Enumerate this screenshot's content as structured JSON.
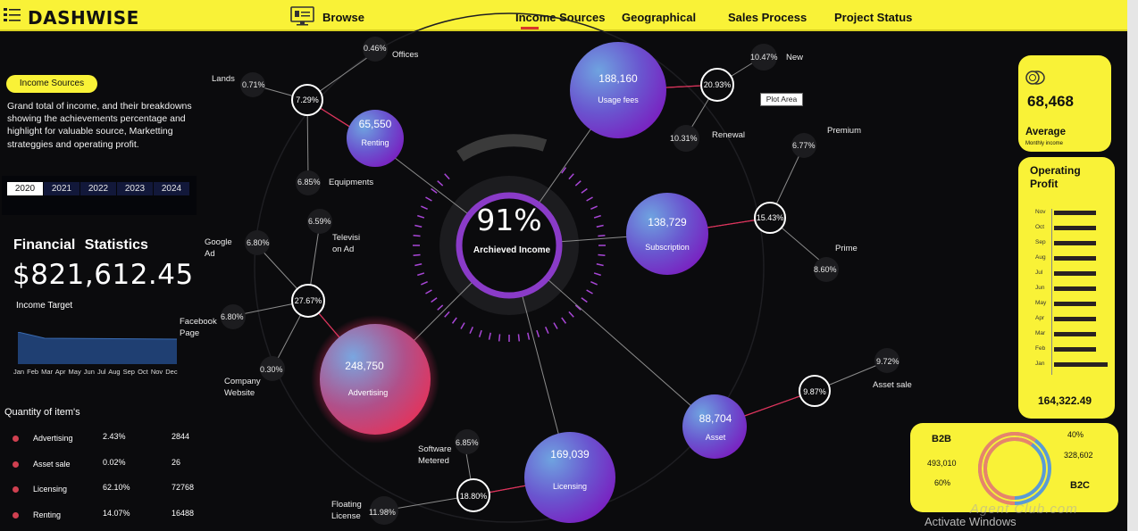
{
  "app": {
    "brand": "DASHWISE"
  },
  "nav": {
    "browse": "Browse",
    "items": [
      "Income Sources",
      "Geographical",
      "Sales Process",
      "Project Status"
    ],
    "active": "Income Sources"
  },
  "left": {
    "pill": "Income Sources",
    "description": "Grand total of income, and their breakdowns showing the achievements percentage and highlight for valuable source, Marketting strateggies and operating  profit.",
    "years": [
      "2020",
      "2021",
      "2022",
      "2023",
      "2024"
    ],
    "active_year": "2020",
    "financial_title": "Financial   Statistics",
    "financial_value": "$821,612.45",
    "income_target": "Income Target",
    "months": "Jan Feb Mar Apr May Jun  Jul  Aug Sep  Oct Nov Dec",
    "quantity_title": "Quantity  of item's",
    "quantity_rows": [
      {
        "name": "Advertising",
        "pct": "2.43%",
        "num": "2844"
      },
      {
        "name": "Asset sale",
        "pct": "0.02%",
        "num": "26"
      },
      {
        "name": "Licensing",
        "pct": "62.10%",
        "num": "72768"
      },
      {
        "name": "Renting",
        "pct": "14.07%",
        "num": "16488"
      }
    ]
  },
  "center": {
    "achieved_pct": "91%",
    "achieved_label": "Archieved Income",
    "bubbles": {
      "usage": {
        "value": "188,160",
        "label": "Usage fees"
      },
      "renting": {
        "value": "65,550",
        "label": "Renting"
      },
      "subscription": {
        "value": "138,729",
        "label": "Subscription"
      },
      "advertising": {
        "value": "248,750",
        "label": "Advertising"
      },
      "asset": {
        "value": "88,704",
        "label": "Asset"
      },
      "licensing": {
        "value": "169,039",
        "label": "Licensing"
      }
    },
    "nodes": {
      "renting": "7.29%",
      "usage": "20.93%",
      "subscription": "15.43%",
      "advertising": "27.67%",
      "asset": "9.87%",
      "licensing": "18.80%"
    },
    "leaves": {
      "offices": {
        "pct": "0.46%",
        "label": "Offices"
      },
      "lands": {
        "pct": "0.71%",
        "label": "Lands"
      },
      "equipments": {
        "pct": "6.85%",
        "label": "Equipments"
      },
      "new": {
        "pct": "10.47%",
        "label": "New"
      },
      "renewal": {
        "pct": "10.31%",
        "label": "Renewal"
      },
      "premium": {
        "pct": "6.77%",
        "label": "Premium"
      },
      "prime": {
        "pct": "8.60%",
        "label": "Prime"
      },
      "google": {
        "pct": "6.80%",
        "label1": "Google",
        "label2": "Ad"
      },
      "television": {
        "pct": "6.59%",
        "label1": "Televisi",
        "label2": "on Ad"
      },
      "facebook": {
        "pct": "6.80%",
        "label1": "Facebook",
        "label2": "Page"
      },
      "website": {
        "pct": "0.30%",
        "label1": "Company",
        "label2": "Website"
      },
      "assetsale1": {
        "pct": "9.72%"
      },
      "assetsale": {
        "label": "Asset sale"
      },
      "software": {
        "pct": "6.85%",
        "label1": "Software",
        "label2": "Metered"
      },
      "floating": {
        "pct": "11.98%",
        "label1": "Floating",
        "label2": "License"
      }
    },
    "tooltip": "Plot Area"
  },
  "right": {
    "average_value": "68,468",
    "average_label": "Average",
    "average_sub": "Monthly income",
    "op_title": "Operating Profit",
    "op_months": [
      "Nov",
      "Oct",
      "Sep",
      "Aug",
      "Jul",
      "Jun",
      "May",
      "Apr",
      "Mar",
      "Feb",
      "Jan"
    ],
    "op_values": [
      0.78,
      0.78,
      0.78,
      0.78,
      0.78,
      0.78,
      0.78,
      0.78,
      0.78,
      0.78,
      1.0
    ],
    "op_total": "164,322.49",
    "b2b_label": "B2B",
    "b2b_value": "493,010",
    "b2b_pct": "60%",
    "b2c_label": "B2C",
    "b2c_value": "328,602",
    "b2c_pct": "40%"
  },
  "system": {
    "activate": "Activate Windows",
    "watermark": "Agent Club.com"
  },
  "colors": {
    "accent": "#f9f237",
    "purple": "#8a3bc8",
    "pink": "#e0305a",
    "blue": "#5b9bd5"
  }
}
